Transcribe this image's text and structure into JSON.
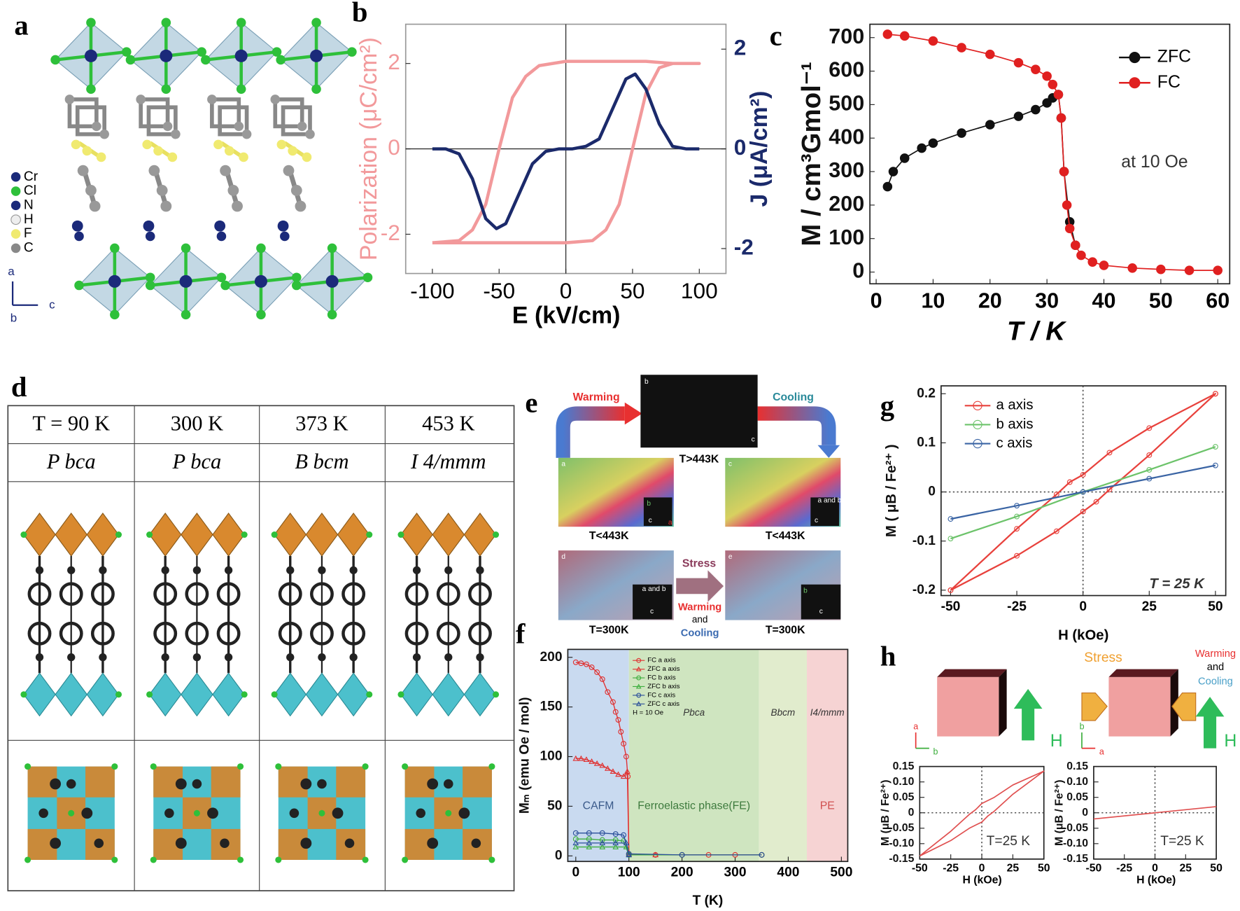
{
  "panel_labels": [
    "a",
    "b",
    "c",
    "d",
    "e",
    "f",
    "g",
    "h"
  ],
  "panel_a": {
    "legend": [
      "Cr",
      "Cl",
      "N",
      "H",
      "F",
      "C"
    ],
    "axes": [
      "a",
      "b",
      "c"
    ]
  },
  "panel_d": {
    "temperatures": [
      "T = 90 K",
      "300 K",
      "373 K",
      "453 K"
    ],
    "space_groups": [
      "P bca",
      "P bca",
      "B bcm",
      "I 4/mmm"
    ]
  },
  "panel_e": {
    "warming": "Warming",
    "cooling": "Cooling",
    "hot": "T>443K",
    "cold": [
      "T<443K",
      "T<443K"
    ],
    "room": [
      "T=300K",
      "T=300K"
    ],
    "stress": "Stress",
    "warming2": "Warming",
    "and": "and",
    "cooling2": "Cooling",
    "image_letters": [
      "b",
      "a",
      "c",
      "d",
      "e"
    ],
    "inset_axes": [
      "a",
      "c",
      "b",
      "c",
      "a and b",
      "c",
      "a and b",
      "c",
      "b",
      "c"
    ]
  },
  "panel_h": {
    "stress": "Stress",
    "warming": "Warming",
    "and": "and",
    "cooling": "Cooling",
    "field": [
      "H",
      "H"
    ],
    "axes_left": [
      "a",
      "b"
    ],
    "axes_right": [
      "b",
      "a"
    ]
  },
  "chart_data": [
    {
      "type": "line",
      "xlabel": "E (kV/cm)",
      "ylabel": "Polarization (μC/cm²)",
      "y2label": "J (μA/cm²)",
      "xlim": [
        -120,
        120
      ],
      "ylim": [
        -2.92,
        2.92
      ],
      "y2lim": [
        -2.5,
        2.5
      ],
      "xticks": [
        -100,
        -50,
        0,
        50,
        100
      ],
      "yticks": [
        -2,
        0,
        2
      ],
      "y2ticks": [
        -2,
        0,
        2
      ],
      "zero_lines": "solid",
      "series": [
        {
          "color": "#f2999b",
          "x": [
            -100,
            -80,
            -60,
            -40,
            -20,
            0,
            20,
            30,
            40,
            50,
            60,
            70,
            80,
            100,
            100,
            80,
            60,
            40,
            20,
            0,
            -20,
            -30,
            -40,
            -50,
            -60,
            -70,
            -80,
            -100
          ],
          "values": [
            -2.2,
            -2.2,
            -2.2,
            -2.2,
            -2.2,
            -2.2,
            -2.15,
            -1.9,
            -1.3,
            0,
            1.3,
            1.9,
            2.0,
            2.0,
            2.0,
            2.0,
            2.05,
            2.05,
            2.05,
            2.05,
            1.95,
            1.7,
            1.2,
            0,
            -1.3,
            -1.9,
            -2.15,
            -2.2
          ]
        },
        {
          "color": "#1b2a6b",
          "axis": "y2",
          "x": [
            -100,
            -90,
            -80,
            -70,
            -60,
            -52,
            -45,
            -35,
            -25,
            -15,
            -5,
            5,
            15,
            25,
            35,
            45,
            52,
            60,
            70,
            80,
            90,
            100
          ],
          "values": [
            0,
            0,
            -0.1,
            -0.6,
            -1.4,
            -1.6,
            -1.5,
            -0.9,
            -0.3,
            -0.05,
            0,
            0,
            0.05,
            0.2,
            0.8,
            1.4,
            1.5,
            1.2,
            0.5,
            0.05,
            0,
            0
          ]
        }
      ]
    },
    {
      "type": "scatter",
      "xlabel": "T / K",
      "ylabel": "M / cm³Gmol⁻¹",
      "annotation": "at 10 Oe",
      "xlim": [
        -1.1,
        62.1
      ],
      "ylim": [
        -35,
        740
      ],
      "xticks": [
        0,
        10,
        20,
        30,
        40,
        50,
        60
      ],
      "yticks": [
        0,
        100,
        200,
        300,
        400,
        500,
        600,
        700
      ],
      "legend": "upper right",
      "series": [
        {
          "name": "ZFC",
          "color": "#111111",
          "marker": "filled-circle",
          "x": [
            2,
            3,
            5,
            8,
            10,
            15,
            20,
            25,
            28,
            30,
            31,
            32,
            32.5,
            33,
            34,
            35
          ],
          "values": [
            255,
            300,
            340,
            370,
            385,
            415,
            440,
            465,
            485,
            505,
            520,
            530,
            460,
            300,
            150,
            80
          ]
        },
        {
          "name": "FC",
          "color": "#e02020",
          "marker": "filled-circle",
          "x": [
            2,
            5,
            10,
            15,
            20,
            25,
            28,
            30,
            31,
            32,
            32.5,
            33,
            33.5,
            34,
            35,
            36,
            38,
            40,
            45,
            50,
            55,
            60
          ],
          "values": [
            710,
            705,
            690,
            670,
            650,
            625,
            605,
            585,
            560,
            530,
            460,
            300,
            200,
            130,
            80,
            50,
            30,
            20,
            12,
            8,
            5,
            5
          ]
        }
      ]
    },
    {
      "type": "scatter",
      "xlabel": "T (K)",
      "ylabel": "Mₘ (emu Oe / mol)",
      "annotation": "H = 10 Oe",
      "xlim": [
        -15,
        512
      ],
      "ylim": [
        -5.6,
        208
      ],
      "xticks": [
        0,
        100,
        200,
        300,
        400,
        500
      ],
      "yticks": [
        0,
        50,
        100,
        150,
        200
      ],
      "legend": "upper left",
      "regions": [
        {
          "from": -15,
          "to": 100,
          "color": "#c9daf0",
          "label": "CAFM",
          "text_color": "#3a5a8a"
        },
        {
          "from": 100,
          "to": 345,
          "color": "#cfe5c0",
          "label": "Ferroelastic phase(FE)",
          "phase": "Pbca",
          "text_color": "#3d7a3d"
        },
        {
          "from": 345,
          "to": 435,
          "color": "#e1eccd",
          "phase": "Bbcm",
          "text_color": "#3d7a3d"
        },
        {
          "from": 435,
          "to": 512,
          "color": "#f6d3d3",
          "label": "PE",
          "phase": "I4/mmm",
          "text_color": "#d05050"
        }
      ],
      "series": [
        {
          "name": "FC a axis",
          "color": "#e03030",
          "marker": "open-circle",
          "x": [
            0,
            10,
            20,
            30,
            40,
            50,
            60,
            70,
            75,
            80,
            85,
            90,
            95,
            98,
            100,
            150,
            200,
            250,
            300,
            350
          ],
          "values": [
            195,
            194,
            193,
            190,
            185,
            178,
            165,
            155,
            145,
            137,
            125,
            113,
            100,
            80,
            2,
            1,
            1,
            1,
            1,
            1
          ]
        },
        {
          "name": "ZFC a axis",
          "color": "#e03030",
          "marker": "open-triangle",
          "x": [
            0,
            10,
            20,
            30,
            40,
            50,
            60,
            70,
            80,
            90,
            97,
            100,
            150
          ],
          "values": [
            98,
            98,
            97,
            95,
            93,
            91,
            88,
            85,
            82,
            80,
            85,
            2,
            1
          ]
        },
        {
          "name": "FC b axis",
          "color": "#3cae3c",
          "marker": "open-circle",
          "x": [
            0,
            25,
            50,
            75,
            90,
            100,
            200,
            350
          ],
          "values": [
            17,
            17,
            16,
            16,
            15,
            1,
            1,
            1
          ]
        },
        {
          "name": "ZFC b axis",
          "color": "#3cae3c",
          "marker": "open-triangle",
          "x": [
            0,
            25,
            50,
            75,
            95,
            100
          ],
          "values": [
            9,
            9,
            9,
            9,
            9,
            1
          ]
        },
        {
          "name": "FC c axis",
          "color": "#2a4f9a",
          "marker": "open-circle",
          "x": [
            0,
            25,
            50,
            75,
            90,
            100,
            200,
            350
          ],
          "values": [
            23,
            23,
            23,
            22,
            21,
            2,
            1,
            1
          ]
        },
        {
          "name": "ZFC c axis",
          "color": "#2a4f9a",
          "marker": "open-triangle",
          "x": [
            0,
            25,
            50,
            75,
            95,
            100
          ],
          "values": [
            13,
            13,
            13,
            13,
            13,
            1
          ]
        }
      ]
    },
    {
      "type": "line",
      "xlabel": "H (kOe)",
      "ylabel": "M ( μB / Fe²⁺ )",
      "annotation": "T = 25 K",
      "xlim": [
        -53.6,
        53.9
      ],
      "ylim": [
        -0.211,
        0.216
      ],
      "xticks": [
        -50,
        -25,
        0,
        25,
        50
      ],
      "yticks": [
        -0.2,
        -0.1,
        0,
        0.1,
        0.2
      ],
      "zero_lines": "dotted",
      "legend": "upper left",
      "series": [
        {
          "name": "a axis",
          "color": "#e8413c",
          "marker": "open-circle",
          "x": [
            -50,
            -25,
            -10,
            0,
            5,
            10,
            25,
            50,
            50,
            25,
            10,
            0,
            -5,
            -10,
            -25,
            -50
          ],
          "values": [
            -0.2,
            -0.13,
            -0.08,
            -0.04,
            -0.02,
            0.005,
            0.075,
            0.2,
            0.2,
            0.13,
            0.08,
            0.035,
            0.02,
            -0.005,
            -0.075,
            -0.2
          ]
        },
        {
          "name": "b axis",
          "color": "#6cc36a",
          "marker": "open-circle",
          "x": [
            -50,
            -25,
            0,
            25,
            50
          ],
          "values": [
            -0.095,
            -0.05,
            0,
            0.045,
            0.092
          ]
        },
        {
          "name": "c axis",
          "color": "#3a64a4",
          "marker": "open-circle",
          "x": [
            -50,
            -25,
            0,
            25,
            50
          ],
          "values": [
            -0.055,
            -0.028,
            0,
            0.027,
            0.054
          ]
        }
      ]
    },
    {
      "type": "line",
      "xlabel": "H (kOe)",
      "ylabel": "M (μB / Fe²⁺)",
      "annotation": "T=25 K",
      "xlim": [
        -50,
        50
      ],
      "ylim": [
        -0.15,
        0.15
      ],
      "xticks": [
        -50,
        -25,
        0,
        25,
        50
      ],
      "yticks": [
        -0.15,
        {
          "value": -0.1,
          "label": "-0.10"
        },
        -0.05,
        0,
        0.05,
        {
          "value": 0.1,
          "label": "0.10"
        },
        0.15
      ],
      "zero_lines": "dotted",
      "series": [
        {
          "color": "#e05050",
          "x": [
            -50,
            -25,
            -10,
            0,
            5,
            10,
            25,
            50,
            50,
            25,
            10,
            0,
            -5,
            -10,
            -25,
            -50
          ],
          "values": [
            -0.14,
            -0.09,
            -0.05,
            -0.03,
            -0.01,
            0.005,
            0.06,
            0.135,
            0.135,
            0.09,
            0.05,
            0.03,
            0.01,
            -0.005,
            -0.06,
            -0.14
          ]
        }
      ]
    },
    {
      "type": "line",
      "xlabel": "H (kOe)",
      "ylabel": "M (μB / Fe²⁺)",
      "annotation": "T=25 K",
      "xlim": [
        -50,
        50
      ],
      "ylim": [
        -0.15,
        0.15
      ],
      "xticks": [
        -50,
        -25,
        0,
        25,
        50
      ],
      "yticks": [
        -0.15,
        {
          "value": -0.1,
          "label": "-0.10"
        },
        -0.05,
        0,
        0.05,
        {
          "value": 0.1,
          "label": "0.10"
        },
        0.15
      ],
      "zero_lines": "dotted",
      "series": [
        {
          "color": "#e05050",
          "x": [
            -50,
            50
          ],
          "values": [
            -0.02,
            0.02
          ]
        }
      ]
    }
  ]
}
